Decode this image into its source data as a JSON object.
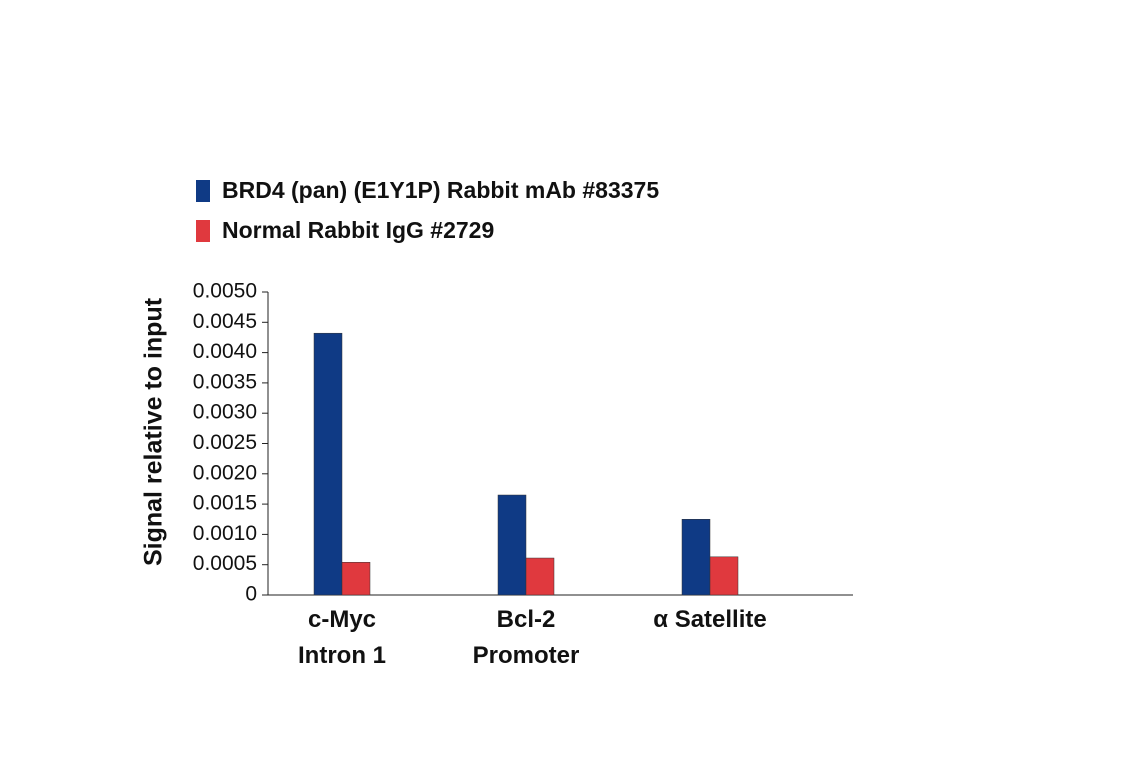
{
  "chart_data": {
    "type": "bar",
    "categories": [
      "c-Myc\nIntron 1",
      "Bcl-2\nPromoter",
      "α Satellite"
    ],
    "series": [
      {
        "name": "BRD4 (pan) (E1Y1P) Rabbit mAb #83375",
        "color": "#0f3a85",
        "values": [
          0.00432,
          0.00165,
          0.00125
        ]
      },
      {
        "name": "Normal Rabbit IgG #2729",
        "color": "#e0393e",
        "values": [
          0.00054,
          0.00061,
          0.00063
        ]
      }
    ],
    "y_label": "Signal relative to input",
    "ylim": [
      0,
      0.005
    ],
    "yticks": [
      0,
      {
        "value": 0.0005,
        "label": "0.0005"
      },
      {
        "value": 0.001,
        "label": "0.0010"
      },
      {
        "value": 0.0015,
        "label": "0.0015"
      },
      {
        "value": 0.002,
        "label": "0.0020"
      },
      {
        "value": 0.0025,
        "label": "0.0025"
      },
      {
        "value": 0.003,
        "label": "0.0030"
      },
      {
        "value": 0.0035,
        "label": "0.0035"
      },
      {
        "value": 0.004,
        "label": "0.0040"
      },
      {
        "value": 0.0045,
        "label": "0.0045"
      },
      {
        "value": 0.005,
        "label": "0.0050"
      }
    ],
    "grid": false
  }
}
